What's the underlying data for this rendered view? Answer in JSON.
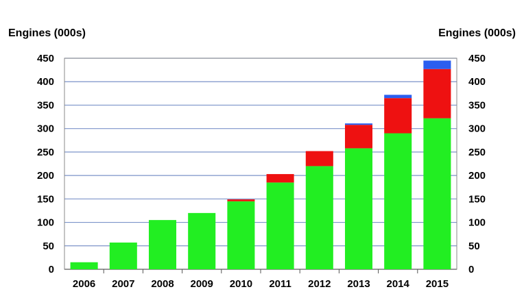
{
  "chart_data": {
    "type": "bar",
    "stacked": true,
    "title": "",
    "ylabel_left": "Engines (000s)",
    "ylabel_right": "Engines (000s)",
    "ylim": [
      0,
      450
    ],
    "yticks": [
      0,
      50,
      100,
      150,
      200,
      250,
      300,
      350,
      400,
      450
    ],
    "grid": true,
    "categories": [
      "2006",
      "2007",
      "2008",
      "2009",
      "2010",
      "2011",
      "2012",
      "2013",
      "2014",
      "2015"
    ],
    "series": [
      {
        "color": "#22ee22",
        "values": [
          15,
          57,
          105,
          120,
          145,
          185,
          220,
          258,
          290,
          322
        ]
      },
      {
        "color": "#ee1111",
        "values": [
          0,
          0,
          0,
          0,
          4,
          18,
          32,
          50,
          75,
          105
        ]
      },
      {
        "color": "#2a5ef0",
        "values": [
          0,
          0,
          0,
          0,
          0,
          0,
          0,
          3,
          7,
          18
        ]
      }
    ]
  }
}
